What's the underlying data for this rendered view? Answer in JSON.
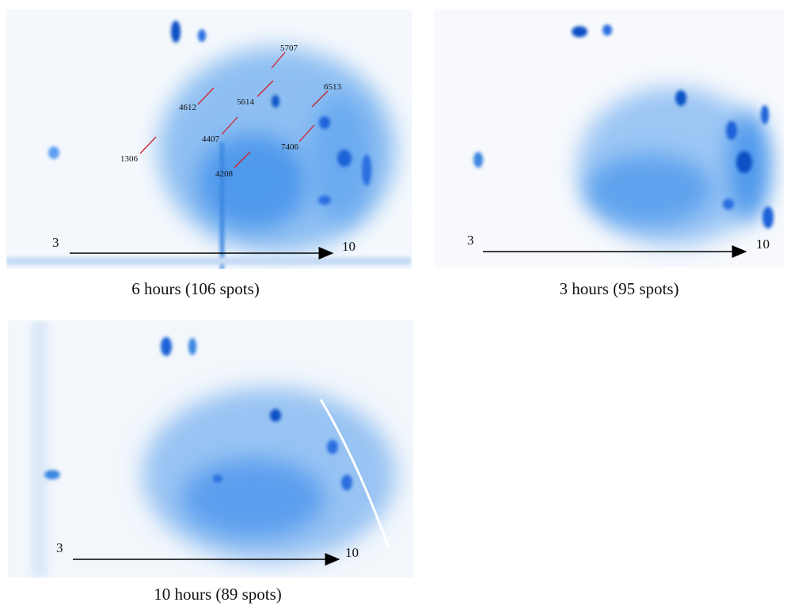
{
  "panels": [
    {
      "caption": "6 hours (106 spots)",
      "axis_start": "3",
      "axis_end": "10",
      "spot_labels": [
        "5707",
        "4612",
        "5614",
        "6513",
        "4407",
        "1306",
        "7406",
        "4208"
      ]
    },
    {
      "caption": "3 hours (95 spots)",
      "axis_start": "3",
      "axis_end": "10"
    },
    {
      "caption": "10 hours (89 spots)",
      "axis_start": "3",
      "axis_end": "10"
    }
  ]
}
